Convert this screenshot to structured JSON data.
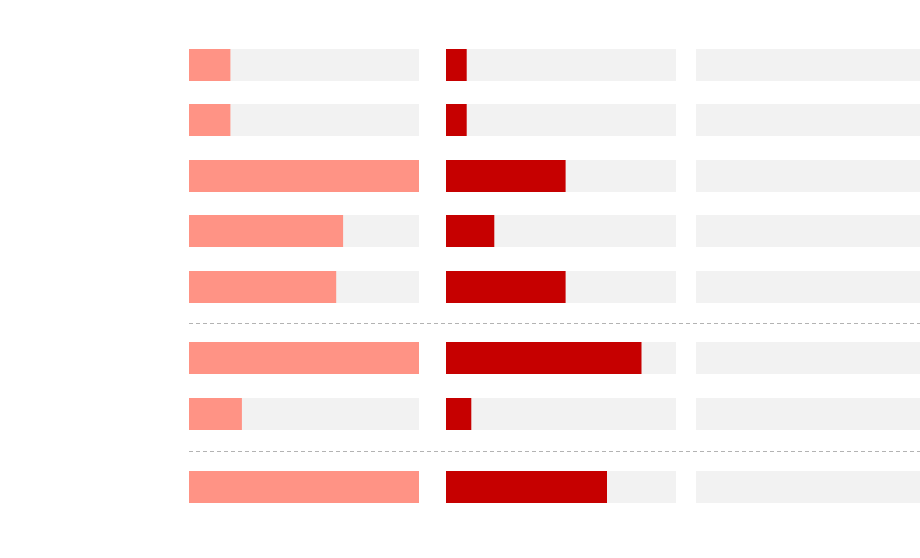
{
  "chart_data": {
    "type": "bar",
    "orientation": "horizontal",
    "xlim": [
      0,
      100
    ],
    "series": [
      {
        "color": "#ff9385",
        "values": [
          18,
          18,
          100,
          67,
          64,
          100,
          23,
          100
        ]
      },
      {
        "color": "#c60000",
        "values": [
          9,
          9,
          52,
          21,
          52,
          85,
          11,
          70
        ]
      }
    ]
  }
}
